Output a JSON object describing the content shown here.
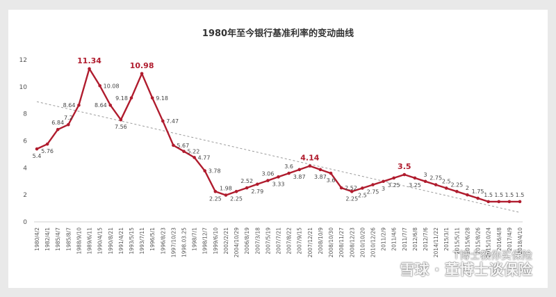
{
  "chart_data": {
    "type": "line",
    "title": "1980年至今银行基准利率的变动曲线",
    "xlabel": "",
    "ylabel": "",
    "ylim": [
      0,
      12
    ],
    "yticks": [
      0,
      2,
      4,
      6,
      8,
      10,
      12
    ],
    "grid": false,
    "legend": "none",
    "x": [
      "1980/4/2",
      "1982/4/1",
      "1985/4/7",
      "1985/8/7",
      "1988/9/10",
      "1989/6/11",
      "1990/4/15",
      "1990/8/21",
      "1991/4/21",
      "1993/5/15",
      "1993/7/11",
      "1996/5/1",
      "1996/8/23",
      "1997/10/23",
      "1998.03.25",
      "1998/7/1",
      "1998/12/7",
      "1999/6/10",
      "2002/2/21",
      "2004/10/29",
      "2006/8/19",
      "2007/3/18",
      "2007/5/19",
      "2007/7/21",
      "2007/8/22",
      "2007/9/15",
      "2007/12/21",
      "2008/10/9",
      "2008/10/30",
      "2008/11/27",
      "2008/12/23",
      "2010/10/20",
      "2010/12/26",
      "2011/2/9",
      "2011/4/6",
      "2011/7/7",
      "2012/6/8",
      "2012/7/6",
      "2014/11/22",
      "2015/3/1",
      "2015/5/11",
      "2015/6/28",
      "2015/8/26",
      "2015/10/24",
      "2016/4/8",
      "2017/4/9",
      "2018/4/10"
    ],
    "series": [
      {
        "values": [
          5.4,
          5.76,
          6.84,
          7.2,
          8.64,
          11.34,
          10.08,
          8.64,
          7.56,
          9.18,
          10.98,
          9.18,
          7.47,
          5.67,
          5.22,
          4.77,
          3.78,
          2.25,
          1.98,
          2.25,
          2.52,
          2.79,
          3.06,
          3.33,
          3.6,
          3.87,
          4.14,
          3.87,
          3.6,
          2.52,
          2.25,
          2.5,
          2.75,
          3,
          3.25,
          3.5,
          3.25,
          3,
          2.75,
          2.5,
          2.25,
          2,
          1.75,
          1.5,
          1.5,
          1.5,
          1.5
        ],
        "labels": [
          "5.4",
          "5.76",
          "6.84",
          "7.2",
          "8.64",
          "11.34",
          "10.08",
          "8.64",
          "7.56",
          "9.18",
          "10.98",
          "9.18",
          "7.47",
          "5.67",
          "5.22",
          "4.77",
          "3.78",
          "2.25",
          "1.98",
          "2.25",
          "2.52",
          "2.79",
          "3.06",
          "3.33",
          "3.6",
          "3.87",
          "4.14",
          "3.87",
          "3.6",
          "2.52",
          "2.25",
          "2.5",
          "2.75",
          "3",
          "3.25",
          "3.5",
          "3.25",
          "3",
          "2.75",
          "2.5",
          "2.25",
          "2",
          "1.75",
          "1.5",
          "1.5",
          "1.5",
          "1.5"
        ],
        "label_pos": [
          "below",
          "below",
          "above",
          "above",
          "left",
          "above",
          "right",
          "left",
          "below",
          "left",
          "above",
          "right",
          "right",
          "right",
          "right",
          "right",
          "right",
          "below",
          "above",
          "below",
          "above",
          "below",
          "above",
          "below",
          "above",
          "below",
          "above",
          "below",
          "below",
          "right",
          "below",
          "below",
          "below",
          "below",
          "below",
          "above",
          "below",
          "above",
          "above",
          "above",
          "above",
          "above",
          "above",
          "above",
          "above",
          "above",
          "above"
        ],
        "highlight": [
          5,
          10,
          26,
          35
        ],
        "color": "#b01c2e"
      }
    ],
    "trendline": {
      "from": [
        0,
        8.9
      ],
      "to": [
        46,
        0.7
      ],
      "color": "#9a9a9a"
    }
  },
  "watermark": {
    "line1": "T博士教你买保险",
    "line2": "雪球 · 董博士谈保险"
  }
}
